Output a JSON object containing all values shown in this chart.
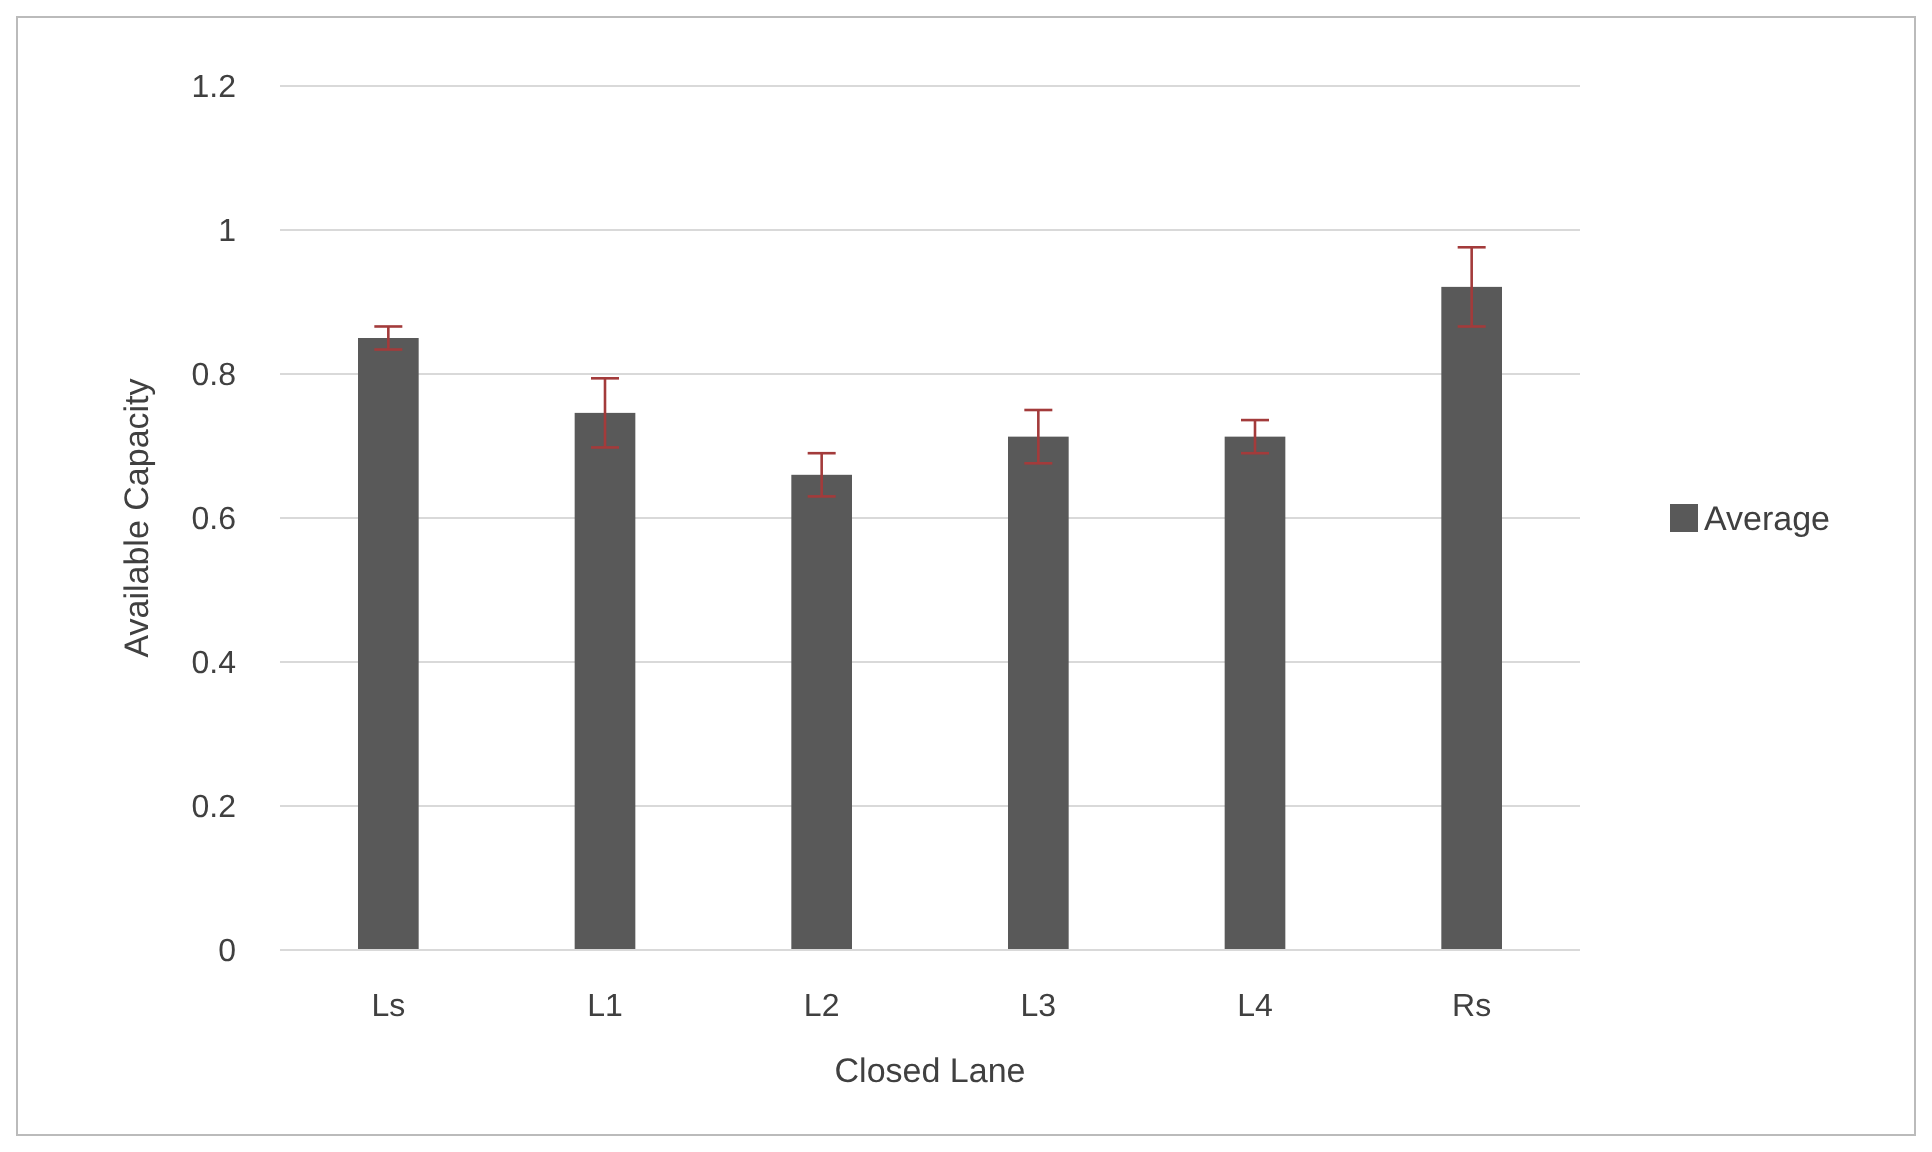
{
  "chart_data": {
    "type": "bar",
    "xlabel": "Closed Lane",
    "ylabel": "Available Capacity",
    "categories": [
      "Ls",
      "L1",
      "L2",
      "L3",
      "L4",
      "Rs"
    ],
    "series": [
      {
        "name": "Average",
        "color": "#595959",
        "values": [
          0.85,
          0.746,
          0.66,
          0.713,
          0.713,
          0.921
        ],
        "errors": [
          0.016,
          0.048,
          0.03,
          0.037,
          0.023,
          0.055
        ]
      }
    ],
    "ylim": [
      0,
      1.2
    ],
    "yticks": [
      0,
      0.2,
      0.4,
      0.6,
      0.8,
      1,
      1.2
    ],
    "grid": "y",
    "legend": "right"
  }
}
